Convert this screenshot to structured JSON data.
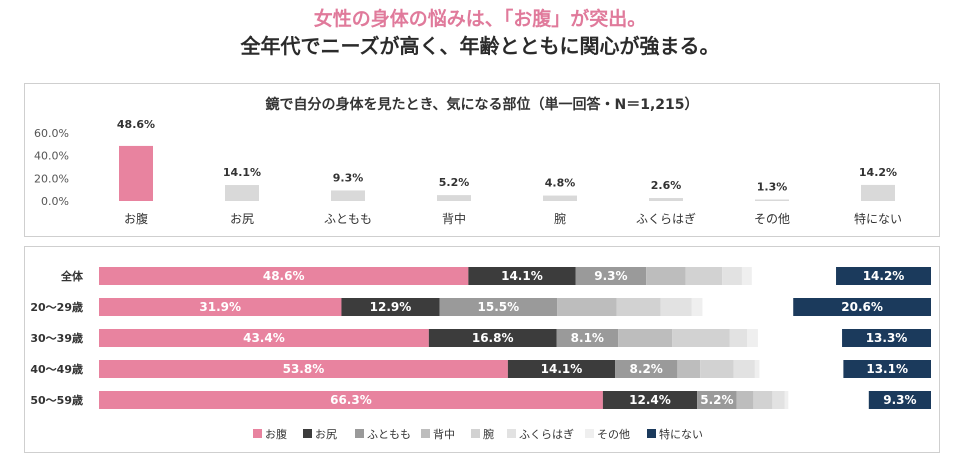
{
  "header": {
    "line1": "女性の身体の悩みは、「お腹」が突出。",
    "line2": "全年代でニーズが高く、年齢とともに関心が強まる。"
  },
  "colors": {
    "accent_pink": "#e8839f",
    "dark": "#3c3c3c",
    "grey_mid": "#9a9a9a",
    "grey_light": "#bdbdbd",
    "grey_lighter": "#d2d2d2",
    "grey_pale": "#e2e2e2",
    "grey_palest": "#efefef",
    "navy": "#1b3a5c",
    "bar_grey": "#d9d9d9"
  },
  "chart_data": [
    {
      "type": "bar",
      "title": "鏡で自分の身体を見たとき、気になる部位（単一回答・N＝1,215）",
      "categories": [
        "お腹",
        "お尻",
        "ふともも",
        "背中",
        "腕",
        "ふくらはぎ",
        "その他",
        "特にない"
      ],
      "values": [
        48.6,
        14.1,
        9.3,
        5.2,
        4.8,
        2.6,
        1.3,
        14.2
      ],
      "value_labels": [
        "48.6%",
        "14.1%",
        "9.3%",
        "5.2%",
        "4.8%",
        "2.6%",
        "1.3%",
        "14.2%"
      ],
      "ylim": [
        0,
        60
      ],
      "yticks": [
        "0.0%",
        "20.0%",
        "40.0%",
        "60.0%"
      ],
      "ytick_values": [
        0,
        20,
        40,
        60
      ]
    },
    {
      "type": "bar",
      "stacked": true,
      "orientation": "horizontal",
      "categories": [
        "全体",
        "20～29歳",
        "30～39歳",
        "40～49歳",
        "50～59歳"
      ],
      "series": [
        {
          "name": "お腹",
          "values": [
            48.6,
            31.9,
            43.4,
            53.8,
            66.3
          ],
          "labels": [
            "48.6%",
            "31.9%",
            "43.4%",
            "53.8%",
            "66.3%"
          ]
        },
        {
          "name": "お尻",
          "values": [
            14.1,
            12.9,
            16.8,
            14.1,
            12.4
          ],
          "labels": [
            "14.1%",
            "12.9%",
            "16.8%",
            "14.1%",
            "12.4%"
          ]
        },
        {
          "name": "ふともも",
          "values": [
            9.3,
            15.5,
            8.1,
            8.2,
            5.2
          ],
          "labels": [
            "9.3%",
            "15.5%",
            "8.1%",
            "8.2%",
            "5.2%"
          ]
        },
        {
          "name": "背中",
          "values": [
            5.2,
            7.8,
            7.1,
            3.0,
            2.2
          ],
          "labels": [
            "",
            "",
            "",
            "",
            ""
          ]
        },
        {
          "name": "腕",
          "values": [
            4.8,
            5.8,
            7.6,
            4.4,
            2.5
          ],
          "labels": [
            "",
            "",
            "",
            "",
            ""
          ]
        },
        {
          "name": "ふくらはぎ",
          "values": [
            2.6,
            4.1,
            2.3,
            2.8,
            1.6
          ],
          "labels": [
            "",
            "",
            "",
            "",
            ""
          ]
        },
        {
          "name": "その他",
          "values": [
            1.3,
            1.4,
            1.4,
            0.6,
            0.5
          ],
          "labels": [
            "",
            "",
            "",
            "",
            ""
          ]
        },
        {
          "name": "特にない",
          "values": [
            14.2,
            20.6,
            13.3,
            13.1,
            9.3
          ],
          "labels": [
            "14.2%",
            "20.6%",
            "13.3%",
            "13.1%",
            "9.3%"
          ]
        }
      ],
      "legend": [
        "お腹",
        "お尻",
        "ふともも",
        "背中",
        "腕",
        "ふくらはぎ",
        "その他",
        "特にない"
      ],
      "legend_position": "bottom"
    }
  ]
}
